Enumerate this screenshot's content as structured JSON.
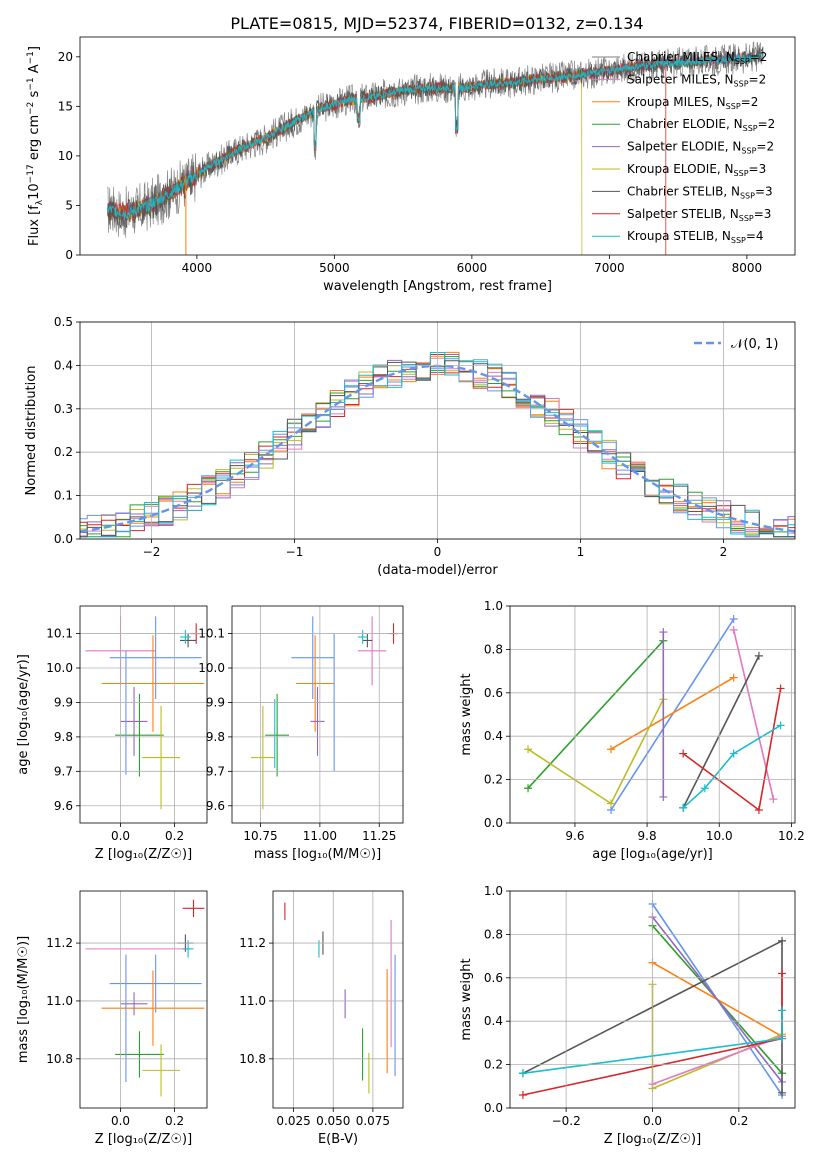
{
  "title": "PLATE=0815, MJD=52374, FIBERID=0132, z=0.134",
  "colors": {
    "chabrier_miles": "#7f7f7f",
    "salpeter_miles": "#e377c2",
    "kroupa_miles": "#ff7f0e",
    "chabrier_elodie": "#2ca02c",
    "salpeter_elodie": "#9467bd",
    "kroupa_elodie": "#bcbd22",
    "chabrier_stelib": "#555555",
    "salpeter_stelib": "#d62728",
    "kroupa_stelib": "#17becf",
    "normal": "#6495ed"
  },
  "chart_data": [
    {
      "id": "spectrum",
      "type": "line",
      "xlabel": "wavelength [Angstrom, rest frame]",
      "ylabel_main": "Flux [f",
      "ylabel_sub": "λ",
      "ylabel_rest": "10",
      "ylabel_sup": "−17",
      "ylabel_units": " erg cm",
      "ylabel_sup2": "−2",
      "ylabel_units2": " s",
      "ylabel_sup3": "−1",
      "ylabel_units3": " A",
      "ylabel_sup4": "−1",
      "ylabel_end": "]",
      "xlim": [
        3150,
        8350
      ],
      "ylim": [
        0,
        22
      ],
      "xticks": [
        "4000",
        "5000",
        "6000",
        "7000",
        "8000"
      ],
      "yticks": [
        "0",
        "5",
        "10",
        "15",
        "20"
      ],
      "grid": false,
      "legend_position": "top-right",
      "series": [
        {
          "name": "Chabrier MILES, N",
          "sub": "SSP",
          "suffix": "=2",
          "color_key": "chabrier_miles"
        },
        {
          "name": "Salpeter MILES, N",
          "sub": "SSP",
          "suffix": "=2",
          "color_key": "salpeter_miles"
        },
        {
          "name": "Kroupa MILES, N",
          "sub": "SSP",
          "suffix": "=2",
          "color_key": "kroupa_miles"
        },
        {
          "name": "Chabrier ELODIE, N",
          "sub": "SSP",
          "suffix": "=2",
          "color_key": "chabrier_elodie"
        },
        {
          "name": "Salpeter ELODIE, N",
          "sub": "SSP",
          "suffix": "=2",
          "color_key": "salpeter_elodie"
        },
        {
          "name": "Kroupa ELODIE, N",
          "sub": "SSP",
          "suffix": "=3",
          "color_key": "kroupa_elodie"
        },
        {
          "name": "Chabrier STELIB, N",
          "sub": "SSP",
          "suffix": "=3",
          "color_key": "chabrier_stelib"
        },
        {
          "name": "Salpeter STELIB, N",
          "sub": "SSP",
          "suffix": "=3",
          "color_key": "salpeter_stelib"
        },
        {
          "name": "Kroupa STELIB, N",
          "sub": "SSP",
          "suffix": "=4",
          "color_key": "kroupa_stelib"
        }
      ],
      "continuum": [
        [
          3350,
          4.6
        ],
        [
          3500,
          4.2
        ],
        [
          3650,
          5.0
        ],
        [
          3800,
          6.2
        ],
        [
          3950,
          7.6
        ],
        [
          4100,
          9.0
        ],
        [
          4300,
          10.6
        ],
        [
          4500,
          11.8
        ],
        [
          4700,
          13.4
        ],
        [
          4900,
          14.8
        ],
        [
          5100,
          15.6
        ],
        [
          5300,
          16.0
        ],
        [
          5500,
          16.6
        ],
        [
          5700,
          16.9
        ],
        [
          5900,
          16.8
        ],
        [
          6100,
          17.2
        ],
        [
          6300,
          17.4
        ],
        [
          6500,
          17.8
        ],
        [
          6700,
          18.0
        ],
        [
          6900,
          18.4
        ],
        [
          7100,
          18.8
        ],
        [
          7300,
          19.2
        ],
        [
          7500,
          19.4
        ],
        [
          7700,
          19.6
        ],
        [
          7900,
          19.8
        ],
        [
          8100,
          20.0
        ]
      ],
      "dropouts": [
        {
          "x": 6800,
          "color_key": "kroupa_elodie"
        },
        {
          "x": 7410,
          "color_key": "salpeter_stelib"
        },
        {
          "x": 3920,
          "color_key": "kroupa_miles"
        }
      ]
    },
    {
      "id": "residuals",
      "type": "line",
      "xlabel": "(data-model)/error",
      "ylabel": "Normed distribution",
      "xlim": [
        -2.5,
        2.5
      ],
      "ylim": [
        0,
        0.5
      ],
      "xticks": [
        -2,
        -1,
        0,
        1,
        2
      ],
      "xtick_labels": [
        "−2",
        "−1",
        "0",
        "1",
        "2"
      ],
      "yticks": [
        0.0,
        0.1,
        0.2,
        0.3,
        0.4,
        0.5
      ],
      "ytick_labels": [
        "0.0",
        "0.1",
        "0.2",
        "0.3",
        "0.4",
        "0.5"
      ],
      "grid": true,
      "legend_position": "top-right",
      "legend_label": "𝒩(0, 1)",
      "bin_width": 0.1
    },
    {
      "id": "age-vs-Z",
      "type": "scatter",
      "xlabel": "Z [log₁₀(Z/Z☉)]",
      "ylabel": "age  [log₁₀(age/yr)]",
      "xlim": [
        -0.15,
        0.32
      ],
      "ylim": [
        9.55,
        10.18
      ],
      "xticks": [
        0.0,
        0.2
      ],
      "xtick_labels": [
        "0.0",
        "0.2"
      ],
      "yticks": [
        9.6,
        9.7,
        9.8,
        9.9,
        10.0,
        10.1
      ],
      "ytick_labels": [
        "9.6",
        "9.7",
        "9.8",
        "9.9",
        "10.0",
        "10.1"
      ],
      "grid": true,
      "points": [
        {
          "x": 0.0,
          "y": 10.05,
          "xerr": 0.13,
          "yerr": 0.1,
          "color_key": "salpeter_miles"
        },
        {
          "x": 0.13,
          "y": 10.03,
          "xerr": 0.17,
          "yerr": 0.12,
          "color_key": "normal"
        },
        {
          "x": 0.12,
          "y": 9.955,
          "xerr": 0.19,
          "yerr": 0.14,
          "color_key": "kroupa_miles"
        },
        {
          "x": 0.05,
          "y": 9.845,
          "xerr": 0.05,
          "yerr": 0.1,
          "color_key": "salpeter_elodie"
        },
        {
          "x": 0.07,
          "y": 9.805,
          "xerr": 0.09,
          "yerr": 0.12,
          "color_key": "chabrier_elodie"
        },
        {
          "x": 0.15,
          "y": 9.74,
          "xerr": 0.07,
          "yerr": 0.15,
          "color_key": "kroupa_elodie"
        },
        {
          "x": 0.28,
          "y": 10.1,
          "xerr": 0.02,
          "yerr": 0.03,
          "color_key": "salpeter_stelib"
        },
        {
          "x": 0.25,
          "y": 10.08,
          "xerr": 0.03,
          "yerr": 0.02,
          "color_key": "chabrier_stelib"
        },
        {
          "x": 0.24,
          "y": 10.09,
          "xerr": 0.02,
          "yerr": 0.02,
          "color_key": "kroupa_stelib"
        },
        {
          "x": 0.02,
          "y": 9.87,
          "xerr": 0.0,
          "yerr": 0.18,
          "color_key": "normal"
        }
      ]
    },
    {
      "id": "age-vs-mass",
      "type": "scatter",
      "xlabel": "mass [log₁₀(M/M☉)]",
      "xlim": [
        10.63,
        11.35
      ],
      "ylim": [
        9.55,
        10.18
      ],
      "xticks": [
        10.75,
        11.0,
        11.25
      ],
      "xtick_labels": [
        "10.75",
        "11.00",
        "11.25"
      ],
      "yticks": [
        9.6,
        9.7,
        9.8,
        9.9,
        10.0,
        10.1
      ],
      "ytick_labels": [
        "9.6",
        "9.7",
        "9.8",
        "9.9",
        "10.0",
        "10.1"
      ],
      "grid": true,
      "points": [
        {
          "x": 11.22,
          "y": 10.05,
          "xerr": 0.06,
          "yerr": 0.1,
          "color_key": "salpeter_miles"
        },
        {
          "x": 10.97,
          "y": 10.03,
          "xerr": 0.09,
          "yerr": 0.12,
          "color_key": "normal"
        },
        {
          "x": 10.98,
          "y": 9.955,
          "xerr": 0.08,
          "yerr": 0.14,
          "color_key": "kroupa_miles"
        },
        {
          "x": 10.99,
          "y": 9.845,
          "xerr": 0.03,
          "yerr": 0.1,
          "color_key": "salpeter_elodie"
        },
        {
          "x": 10.82,
          "y": 9.805,
          "xerr": 0.05,
          "yerr": 0.12,
          "color_key": "chabrier_elodie"
        },
        {
          "x": 10.76,
          "y": 9.74,
          "xerr": 0.05,
          "yerr": 0.15,
          "color_key": "kroupa_elodie"
        },
        {
          "x": 11.31,
          "y": 10.1,
          "xerr": 0.02,
          "yerr": 0.03,
          "color_key": "salpeter_stelib"
        },
        {
          "x": 11.2,
          "y": 10.08,
          "xerr": 0.02,
          "yerr": 0.02,
          "color_key": "chabrier_stelib"
        },
        {
          "x": 11.18,
          "y": 10.09,
          "xerr": 0.02,
          "yerr": 0.02,
          "color_key": "kroupa_stelib"
        },
        {
          "x": 11.06,
          "y": 9.9,
          "xerr": 0.0,
          "yerr": 0.2,
          "color_key": "normal"
        },
        {
          "x": 10.81,
          "y": 9.81,
          "xerr": 0.0,
          "yerr": 0.1,
          "color_key": "kroupa_stelib"
        }
      ]
    },
    {
      "id": "mass-weight-vs-age",
      "type": "line",
      "xlabel": "age  [log₁₀(age/yr)]",
      "ylabel": "mass weight",
      "xlim": [
        9.42,
        10.21
      ],
      "ylim": [
        0,
        1
      ],
      "xticks": [
        9.6,
        9.8,
        10.0,
        10.2
      ],
      "xtick_labels": [
        "9.6",
        "9.8",
        "10.0",
        "10.2"
      ],
      "yticks": [
        0,
        0.2,
        0.4,
        0.6,
        0.8,
        1.0
      ],
      "ytick_labels": [
        "0.0",
        "0.2",
        "0.4",
        "0.6",
        "0.8",
        "1.0"
      ],
      "grid": true,
      "series": [
        {
          "color_key": "chabrier_elodie",
          "x": [
            9.47,
            9.845
          ],
          "y": [
            0.16,
            0.84
          ]
        },
        {
          "color_key": "normal",
          "x": [
            9.7,
            10.04
          ],
          "y": [
            0.06,
            0.94
          ]
        },
        {
          "color_key": "kroupa_miles",
          "x": [
            9.7,
            10.04
          ],
          "y": [
            0.34,
            0.67
          ]
        },
        {
          "color_key": "kroupa_elodie",
          "x": [
            9.47,
            9.7,
            9.845
          ],
          "y": [
            0.34,
            0.09,
            0.57
          ]
        },
        {
          "color_key": "salpeter_elodie",
          "x": [
            9.845,
            9.845
          ],
          "y": [
            0.12,
            0.88
          ]
        },
        {
          "color_key": "salpeter_miles",
          "x": [
            10.04,
            10.15
          ],
          "y": [
            0.89,
            0.11
          ]
        },
        {
          "color_key": "chabrier_stelib",
          "x": [
            9.9,
            10.11
          ],
          "y": [
            0.07,
            0.77
          ]
        },
        {
          "color_key": "salpeter_stelib",
          "x": [
            9.9,
            10.11,
            10.17
          ],
          "y": [
            0.32,
            0.06,
            0.62
          ]
        },
        {
          "color_key": "kroupa_stelib",
          "x": [
            9.9,
            9.96,
            10.04,
            10.17
          ],
          "y": [
            0.07,
            0.16,
            0.32,
            0.45
          ]
        }
      ]
    },
    {
      "id": "mass-vs-Z",
      "type": "scatter",
      "xlabel": "Z [log₁₀(Z/Z☉)]",
      "ylabel": "mass [log₁₀(M/M☉)]",
      "xlim": [
        -0.15,
        0.32
      ],
      "ylim": [
        10.63,
        11.38
      ],
      "xticks": [
        0.0,
        0.2
      ],
      "xtick_labels": [
        "0.0",
        "0.2"
      ],
      "yticks": [
        10.8,
        11.0,
        11.2
      ],
      "ytick_labels": [
        "10.8",
        "11.0",
        "11.2"
      ],
      "grid": true,
      "points": [
        {
          "x": 0.06,
          "y": 11.18,
          "xerr": 0.19,
          "yerr": 0.0,
          "color_key": "salpeter_miles"
        },
        {
          "x": 0.13,
          "y": 11.06,
          "xerr": 0.17,
          "yerr": 0.1,
          "color_key": "normal"
        },
        {
          "x": 0.12,
          "y": 10.975,
          "xerr": 0.19,
          "yerr": 0.13,
          "color_key": "kroupa_miles"
        },
        {
          "x": 0.05,
          "y": 10.99,
          "xerr": 0.05,
          "yerr": 0.04,
          "color_key": "salpeter_elodie"
        },
        {
          "x": 0.07,
          "y": 10.815,
          "xerr": 0.09,
          "yerr": 0.08,
          "color_key": "chabrier_elodie"
        },
        {
          "x": 0.15,
          "y": 10.76,
          "xerr": 0.07,
          "yerr": 0.09,
          "color_key": "kroupa_elodie"
        },
        {
          "x": 0.27,
          "y": 11.32,
          "xerr": 0.04,
          "yerr": 0.03,
          "color_key": "salpeter_stelib"
        },
        {
          "x": 0.24,
          "y": 11.2,
          "xerr": 0.03,
          "yerr": 0.03,
          "color_key": "chabrier_stelib"
        },
        {
          "x": 0.25,
          "y": 11.18,
          "xerr": 0.02,
          "yerr": 0.03,
          "color_key": "kroupa_stelib"
        },
        {
          "x": 0.02,
          "y": 10.94,
          "xerr": 0.0,
          "yerr": 0.22,
          "color_key": "normal"
        }
      ]
    },
    {
      "id": "mass-vs-EBV",
      "type": "scatter",
      "xlabel": "E(B-V)",
      "xlim": [
        0.012,
        0.094
      ],
      "ylim": [
        10.63,
        11.38
      ],
      "xticks": [
        0.025,
        0.05,
        0.075
      ],
      "xtick_labels": [
        "0.025",
        "0.050",
        "0.075"
      ],
      "yticks": [
        10.8,
        11.0,
        11.2
      ],
      "ytick_labels": [
        "10.8",
        "11.0",
        "11.2"
      ],
      "grid": true,
      "points": [
        {
          "x": 0.0195,
          "y": 11.31,
          "xerr": 0.0,
          "yerr": 0.03,
          "color_key": "salpeter_stelib"
        },
        {
          "x": 0.0435,
          "y": 11.2,
          "xerr": 0.0,
          "yerr": 0.04,
          "color_key": "chabrier_stelib"
        },
        {
          "x": 0.041,
          "y": 11.18,
          "xerr": 0.0,
          "yerr": 0.03,
          "color_key": "kroupa_stelib"
        },
        {
          "x": 0.0575,
          "y": 10.99,
          "xerr": 0.0,
          "yerr": 0.05,
          "color_key": "salpeter_elodie"
        },
        {
          "x": 0.0685,
          "y": 10.815,
          "xerr": 0.0,
          "yerr": 0.09,
          "color_key": "chabrier_elodie"
        },
        {
          "x": 0.0725,
          "y": 10.75,
          "xerr": 0.0,
          "yerr": 0.07,
          "color_key": "kroupa_elodie"
        },
        {
          "x": 0.084,
          "y": 10.93,
          "xerr": 0.0,
          "yerr": 0.18,
          "color_key": "kroupa_miles"
        },
        {
          "x": 0.0865,
          "y": 11.06,
          "xerr": 0.0,
          "yerr": 0.22,
          "color_key": "salpeter_miles"
        },
        {
          "x": 0.089,
          "y": 10.95,
          "xerr": 0.0,
          "yerr": 0.21,
          "color_key": "normal"
        }
      ]
    },
    {
      "id": "mass-weight-vs-Z",
      "type": "line",
      "xlabel": "Z [log₁₀(Z/Z☉)]",
      "ylabel": "mass weight",
      "xlim": [
        -0.33,
        0.33
      ],
      "ylim": [
        0,
        1
      ],
      "xticks": [
        -0.2,
        0.0,
        0.2
      ],
      "xtick_labels": [
        "−0.2",
        "0.0",
        "0.2"
      ],
      "yticks": [
        0,
        0.2,
        0.4,
        0.6,
        0.8,
        1.0
      ],
      "ytick_labels": [
        "0.0",
        "0.2",
        "0.4",
        "0.6",
        "0.8",
        "1.0"
      ],
      "grid": true,
      "series": [
        {
          "color_key": "chabrier_elodie",
          "x": [
            0.0,
            0.3
          ],
          "y": [
            0.84,
            0.16
          ]
        },
        {
          "color_key": "normal",
          "x": [
            0.0,
            0.3
          ],
          "y": [
            0.94,
            0.06
          ]
        },
        {
          "color_key": "kroupa_miles",
          "x": [
            0.0,
            0.3
          ],
          "y": [
            0.67,
            0.33
          ]
        },
        {
          "color_key": "kroupa_elodie",
          "x": [
            0.0,
            0.0,
            0.3
          ],
          "y": [
            0.57,
            0.09,
            0.34
          ]
        },
        {
          "color_key": "salpeter_elodie",
          "x": [
            0.0,
            0.3
          ],
          "y": [
            0.88,
            0.12
          ]
        },
        {
          "color_key": "salpeter_miles",
          "x": [
            0.0,
            0.3
          ],
          "y": [
            0.11,
            0.33
          ]
        },
        {
          "color_key": "chabrier_stelib",
          "x": [
            -0.3,
            0.3,
            0.3
          ],
          "y": [
            0.16,
            0.77,
            0.07
          ]
        },
        {
          "color_key": "salpeter_stelib",
          "x": [
            -0.3,
            0.3,
            0.3
          ],
          "y": [
            0.06,
            0.32,
            0.62
          ]
        },
        {
          "color_key": "kroupa_stelib",
          "x": [
            -0.3,
            0.3,
            0.3
          ],
          "y": [
            0.16,
            0.32,
            0.45
          ]
        }
      ]
    }
  ]
}
